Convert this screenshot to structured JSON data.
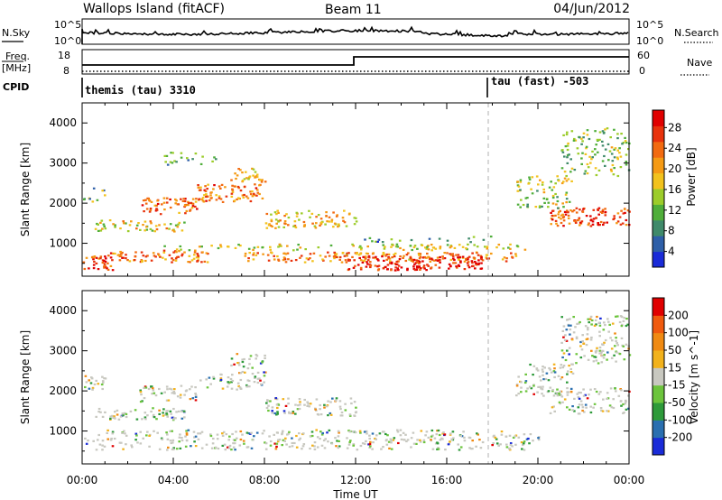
{
  "header": {
    "station": "Wallops Island (fitACF)",
    "beam": "Beam 11",
    "date": "04/Jun/2012"
  },
  "strip_labels": {
    "nsky": "N.Sky",
    "nsearch": "N.Search",
    "freq_1": "Freq.",
    "freq_2": "[MHz]",
    "nave": "Nave",
    "cpid": "CPID",
    "log_hi": "10^5",
    "log_lo": "10^0",
    "freq_hi": "18",
    "freq_lo": "8",
    "nave_hi": "60",
    "nave_lo": "0"
  },
  "cpid_segments": [
    {
      "label": "themis (tau) 3310",
      "start_hour": 0
    },
    {
      "label": "tau (fast) -503",
      "start_hour": 18
    }
  ],
  "chart_data": [
    {
      "type": "heatmap",
      "panel": "power",
      "ylabel": "Slant Range [km]",
      "xlabel": "Time UT",
      "xlim_hours": [
        0,
        24
      ],
      "x_ticks": [
        "00:00",
        "04:00",
        "08:00",
        "12:00",
        "16:00",
        "20:00",
        "00:00"
      ],
      "ylim": [
        180,
        4500
      ],
      "y_ticks": [
        1000,
        2000,
        3000,
        4000
      ],
      "colorbar_label": "Power [dB]",
      "colorbar_ticks": [
        "4",
        "8",
        "12",
        "16",
        "20",
        "24",
        "28"
      ],
      "colorbar_colors": [
        "#1a2bd8",
        "#2e5fa8",
        "#3f8a6a",
        "#4fae3a",
        "#9ccc2a",
        "#f2c21d",
        "#f59a14",
        "#f26a10",
        "#e8320c",
        "#e00000"
      ],
      "scatter_regions": [
        {
          "t0": 0.0,
          "t1": 1.5,
          "r0": 350,
          "r1": 700,
          "intensity": 0.85
        },
        {
          "t0": 1.0,
          "t1": 5.5,
          "r0": 550,
          "r1": 850,
          "intensity": 0.75
        },
        {
          "t0": 0.5,
          "t1": 4.5,
          "r0": 1300,
          "r1": 1600,
          "intensity": 0.55
        },
        {
          "t0": 2.5,
          "t1": 5.0,
          "r0": 1750,
          "r1": 2150,
          "intensity": 0.8
        },
        {
          "t0": 5.0,
          "t1": 8.0,
          "r0": 2050,
          "r1": 2500,
          "intensity": 0.75
        },
        {
          "t0": 6.5,
          "t1": 8.0,
          "r0": 2550,
          "r1": 2950,
          "intensity": 0.6
        },
        {
          "t0": 8.0,
          "t1": 12.0,
          "r0": 1400,
          "r1": 1850,
          "intensity": 0.6
        },
        {
          "t0": 3.0,
          "t1": 19.5,
          "r0": 850,
          "r1": 1000,
          "intensity": 0.5
        },
        {
          "t0": 7.0,
          "t1": 19.0,
          "r0": 550,
          "r1": 800,
          "intensity": 0.7
        },
        {
          "t0": 11.5,
          "t1": 17.5,
          "r0": 350,
          "r1": 700,
          "intensity": 0.95
        },
        {
          "t0": 12.0,
          "t1": 18.0,
          "r0": 1050,
          "r1": 1200,
          "intensity": 0.25
        },
        {
          "t0": 20.5,
          "t1": 24.0,
          "r0": 1450,
          "r1": 1900,
          "intensity": 0.85
        },
        {
          "t0": 19.0,
          "t1": 21.5,
          "r0": 1900,
          "r1": 2700,
          "intensity": 0.45
        },
        {
          "t0": 21.0,
          "t1": 24.0,
          "r0": 2700,
          "r1": 3900,
          "intensity": 0.4
        },
        {
          "t0": 3.5,
          "t1": 6.0,
          "r0": 2950,
          "r1": 3300,
          "intensity": 0.3
        },
        {
          "t0": 0.0,
          "t1": 1.0,
          "r0": 2050,
          "r1": 2400,
          "intensity": 0.35
        }
      ]
    },
    {
      "type": "heatmap",
      "panel": "velocity",
      "ylabel": "Slant Range [km]",
      "xlabel": "Time UT",
      "xlim_hours": [
        0,
        24
      ],
      "x_ticks": [
        "00:00",
        "04:00",
        "08:00",
        "12:00",
        "16:00",
        "20:00",
        "00:00"
      ],
      "ylim": [
        180,
        4500
      ],
      "y_ticks": [
        1000,
        2000,
        3000,
        4000
      ],
      "colorbar_label": "Velocity [m s^-1]",
      "colorbar_ticks": [
        "200",
        "100",
        "50",
        "15",
        "-15",
        "-50",
        "-100",
        "-200"
      ],
      "colorbar_colors": [
        "#1a2bd8",
        "#2a6fb0",
        "#2e9a3a",
        "#6cc43c",
        "#c8c8c0",
        "#f2b21c",
        "#f08a12",
        "#f05a0e",
        "#e00000"
      ],
      "scatter_regions": [
        {
          "t0": 0.0,
          "t1": 20.0,
          "r0": 550,
          "r1": 850,
          "intensity": 0.5
        },
        {
          "t0": 0.5,
          "t1": 20.0,
          "r0": 850,
          "r1": 1050,
          "intensity": 0.5
        },
        {
          "t0": 0.5,
          "t1": 4.5,
          "r0": 1300,
          "r1": 1600,
          "intensity": 0.7
        },
        {
          "t0": 2.5,
          "t1": 5.0,
          "r0": 1750,
          "r1": 2150,
          "intensity": 0.6
        },
        {
          "t0": 5.0,
          "t1": 8.0,
          "r0": 2050,
          "r1": 2500,
          "intensity": 0.5
        },
        {
          "t0": 6.5,
          "t1": 8.0,
          "r0": 2550,
          "r1": 2950,
          "intensity": 0.5
        },
        {
          "t0": 8.0,
          "t1": 12.0,
          "r0": 1400,
          "r1": 1850,
          "intensity": 0.6
        },
        {
          "t0": 20.5,
          "t1": 24.0,
          "r0": 1450,
          "r1": 2100,
          "intensity": 0.5
        },
        {
          "t0": 19.0,
          "t1": 21.5,
          "r0": 1900,
          "r1": 2700,
          "intensity": 0.5
        },
        {
          "t0": 21.0,
          "t1": 24.0,
          "r0": 2700,
          "r1": 3900,
          "intensity": 0.5
        },
        {
          "t0": 0.0,
          "t1": 1.0,
          "r0": 2050,
          "r1": 2400,
          "intensity": 0.7
        }
      ]
    }
  ]
}
